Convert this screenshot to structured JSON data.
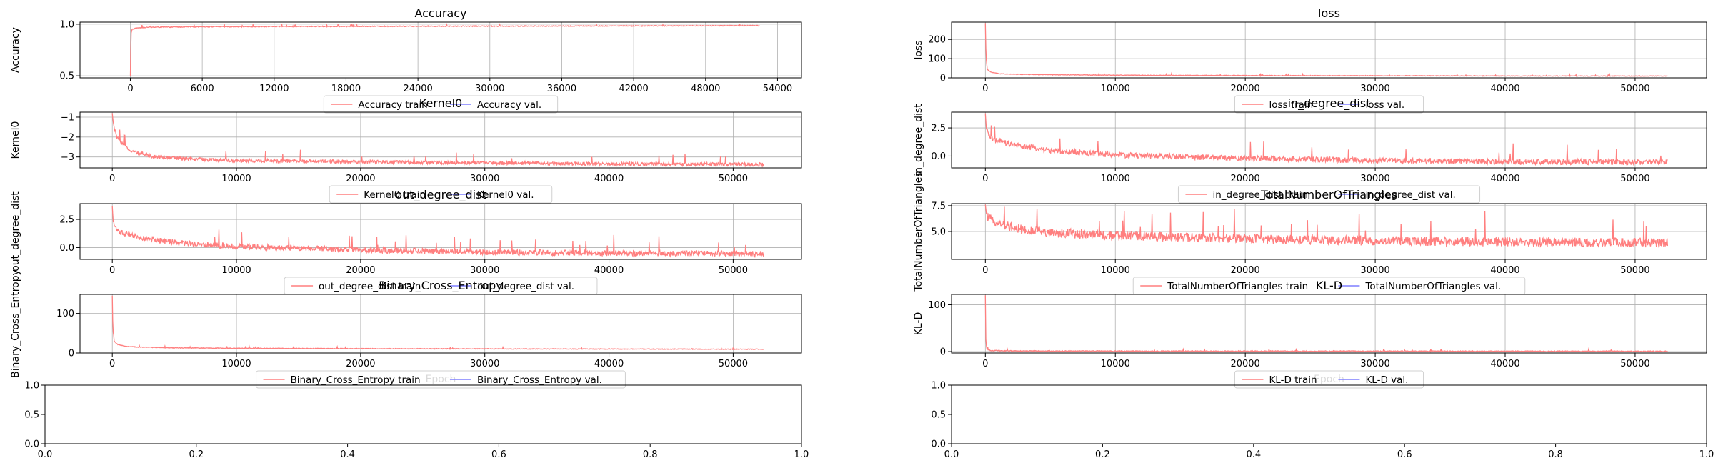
{
  "figure": {
    "type": "training-curves-grid"
  },
  "colors": {
    "train": "#ff7f7f",
    "val": "#7f7fff",
    "grid": "#b0b0b0",
    "axis": "#000000"
  },
  "chart_data": [
    {
      "type": "line",
      "title": "Accuracy",
      "xlabel": "",
      "ylabel": "Accuracy",
      "xlim": [
        -4200,
        56000
      ],
      "ylim": [
        0.48,
        1.02
      ],
      "xticks": [
        0,
        6000,
        12000,
        18000,
        24000,
        30000,
        36000,
        42000,
        48000,
        54000
      ],
      "xtick_labels": [
        "0",
        "6000",
        "12000",
        "18000",
        "24000",
        "30000",
        "36000",
        "42000",
        "48000",
        "54000"
      ],
      "yticks": [
        0.5,
        1.0
      ],
      "ytick_labels": [
        "0.5",
        "1.0"
      ],
      "grid": true,
      "legend": "bottom-center",
      "series": [
        {
          "name": "Accuracy train",
          "x": [
            0,
            60,
            150,
            400,
            800,
            1500,
            3000,
            6000,
            12000,
            24000,
            36000,
            48000,
            52500
          ],
          "y": [
            0.5,
            0.91,
            0.95,
            0.96,
            0.965,
            0.97,
            0.972,
            0.975,
            0.978,
            0.98,
            0.982,
            0.985,
            0.986
          ],
          "noise": 0.004
        },
        {
          "name": "Accuracy val.",
          "x": [],
          "y": []
        }
      ]
    },
    {
      "type": "line",
      "title": "loss",
      "xlabel": "",
      "ylabel": "loss",
      "xlim": [
        -2600,
        55500
      ],
      "ylim": [
        0,
        290
      ],
      "xticks": [
        0,
        10000,
        20000,
        30000,
        40000,
        50000
      ],
      "xtick_labels": [
        "0",
        "10000",
        "20000",
        "30000",
        "40000",
        "50000"
      ],
      "yticks": [
        0,
        100,
        200
      ],
      "ytick_labels": [
        "0",
        "100",
        "200"
      ],
      "grid": true,
      "legend": "bottom-center",
      "series": [
        {
          "name": "loss train",
          "x": [
            0,
            50,
            150,
            400,
            1000,
            2000,
            5000,
            10000,
            20000,
            30000,
            40000,
            52500
          ],
          "y": [
            285,
            110,
            45,
            30,
            22,
            19,
            16,
            14,
            12,
            11,
            10,
            9.5
          ],
          "noise": 1.5
        },
        {
          "name": "loss val.",
          "x": [],
          "y": []
        }
      ]
    },
    {
      "type": "line",
      "title": "Kernel0",
      "xlabel": "",
      "ylabel": "Kernel0",
      "xlim": [
        -2600,
        55500
      ],
      "ylim": [
        -3.55,
        -0.75
      ],
      "xticks": [
        0,
        10000,
        20000,
        30000,
        40000,
        50000
      ],
      "xtick_labels": [
        "0",
        "10000",
        "20000",
        "30000",
        "40000",
        "50000"
      ],
      "yticks": [
        -1,
        -2,
        -3
      ],
      "ytick_labels": [
        "−1",
        "−2",
        "−3"
      ],
      "grid": true,
      "legend": "bottom-center",
      "series": [
        {
          "name": "Kernel0 train",
          "x": [
            0,
            100,
            300,
            700,
            1500,
            3000,
            6000,
            10000,
            20000,
            30000,
            40000,
            52500
          ],
          "y": [
            -0.8,
            -1.4,
            -1.9,
            -2.3,
            -2.7,
            -2.95,
            -3.1,
            -3.18,
            -3.25,
            -3.3,
            -3.35,
            -3.38
          ],
          "noise": 0.09
        },
        {
          "name": "Kernel0 val.",
          "x": [],
          "y": []
        }
      ]
    },
    {
      "type": "line",
      "title": "in_degree_dist",
      "xlabel": "",
      "ylabel": "in_degree_dist",
      "xlim": [
        -2600,
        55500
      ],
      "ylim": [
        -1.05,
        3.9
      ],
      "xticks": [
        0,
        10000,
        20000,
        30000,
        40000,
        50000
      ],
      "xtick_labels": [
        "0",
        "10000",
        "20000",
        "30000",
        "40000",
        "50000"
      ],
      "yticks": [
        0.0,
        2.5
      ],
      "ytick_labels": [
        "0.0",
        "2.5"
      ],
      "grid": true,
      "legend": "bottom-center",
      "series": [
        {
          "name": "in_degree_dist train",
          "x": [
            0,
            80,
            300,
            800,
            2000,
            5000,
            10000,
            20000,
            30000,
            40000,
            52500
          ],
          "y": [
            3.8,
            2.3,
            1.8,
            1.4,
            1.0,
            0.5,
            0.1,
            -0.2,
            -0.4,
            -0.5,
            -0.55
          ],
          "noise": 0.25
        },
        {
          "name": "in_degree_dist val.",
          "x": [],
          "y": []
        }
      ]
    },
    {
      "type": "line",
      "title": "out_degree_dist",
      "xlabel": "",
      "ylabel": "out_degree_dist",
      "xlim": [
        -2600,
        55500
      ],
      "ylim": [
        -1.05,
        3.9
      ],
      "xticks": [
        0,
        10000,
        20000,
        30000,
        40000,
        50000
      ],
      "xtick_labels": [
        "0",
        "10000",
        "20000",
        "30000",
        "40000",
        "50000"
      ],
      "yticks": [
        0.0,
        2.5
      ],
      "ytick_labels": [
        "0.0",
        "2.5"
      ],
      "grid": true,
      "legend": "bottom-center",
      "series": [
        {
          "name": "out_degree_dist train",
          "x": [
            0,
            80,
            300,
            800,
            2000,
            5000,
            10000,
            20000,
            30000,
            40000,
            52500
          ],
          "y": [
            3.7,
            2.2,
            1.7,
            1.3,
            0.9,
            0.45,
            0.1,
            -0.2,
            -0.4,
            -0.5,
            -0.55
          ],
          "noise": 0.25
        },
        {
          "name": "out_degree_dist val.",
          "x": [],
          "y": []
        }
      ]
    },
    {
      "type": "line",
      "title": "TotalNumberOfTriangles",
      "xlabel": "",
      "ylabel": "TotalNumberOfTriangles",
      "xlim": [
        -2600,
        55500
      ],
      "ylim": [
        2.3,
        7.7
      ],
      "xticks": [
        0,
        10000,
        20000,
        30000,
        40000,
        50000
      ],
      "xtick_labels": [
        "0",
        "10000",
        "20000",
        "30000",
        "40000",
        "50000"
      ],
      "yticks": [
        5.0,
        7.5
      ],
      "ytick_labels": [
        "5.0",
        "7.5"
      ],
      "grid": true,
      "legend": "bottom-center",
      "series": [
        {
          "name": "TotalNumberOfTriangles train",
          "x": [
            0,
            100,
            400,
            1000,
            2500,
            5000,
            10000,
            20000,
            30000,
            40000,
            52500
          ],
          "y": [
            7.6,
            6.5,
            6.2,
            5.8,
            5.3,
            4.9,
            4.6,
            4.3,
            4.1,
            4.0,
            3.9
          ],
          "noise": 0.45
        },
        {
          "name": "TotalNumberOfTriangles val.",
          "x": [],
          "y": []
        }
      ]
    },
    {
      "type": "line",
      "title": "Binary_Cross_Entropy",
      "xlabel": "Epoch",
      "ylabel": "Binary_Cross_Entropy",
      "xlim": [
        -2600,
        55500
      ],
      "ylim": [
        0,
        148
      ],
      "xticks": [
        0,
        10000,
        20000,
        30000,
        40000,
        50000
      ],
      "xtick_labels": [
        "0",
        "10000",
        "20000",
        "30000",
        "40000",
        "50000"
      ],
      "yticks": [
        0,
        100
      ],
      "ytick_labels": [
        "0",
        "100"
      ],
      "grid": true,
      "legend": "bottom-center",
      "series": [
        {
          "name": "Binary_Cross_Entropy train",
          "x": [
            0,
            50,
            150,
            400,
            1000,
            2000,
            5000,
            10000,
            20000,
            30000,
            40000,
            52500
          ],
          "y": [
            145,
            60,
            30,
            22,
            17,
            15,
            13,
            12,
            11,
            10.5,
            10,
            9.5
          ],
          "noise": 0.8
        },
        {
          "name": "Binary_Cross_Entropy val.",
          "x": [],
          "y": []
        }
      ]
    },
    {
      "type": "line",
      "title": "KL-D",
      "xlabel": "Epoch",
      "ylabel": "KL-D",
      "xlim": [
        -2600,
        55500
      ],
      "ylim": [
        -3,
        122
      ],
      "xticks": [
        0,
        10000,
        20000,
        30000,
        40000,
        50000
      ],
      "xtick_labels": [
        "0",
        "10000",
        "20000",
        "30000",
        "40000",
        "50000"
      ],
      "yticks": [
        0,
        100
      ],
      "ytick_labels": [
        "0",
        "100"
      ],
      "grid": true,
      "legend": "bottom-center",
      "series": [
        {
          "name": "KL-D train",
          "x": [
            0,
            40,
            120,
            400,
            1500,
            5000,
            10000,
            30000,
            52500
          ],
          "y": [
            120,
            20,
            5,
            2.5,
            1.5,
            1.2,
            1.0,
            0.8,
            0.6
          ],
          "noise": 0.9
        },
        {
          "name": "KL-D val.",
          "x": [],
          "y": []
        }
      ]
    },
    {
      "type": "line",
      "title": "",
      "xlabel": "",
      "ylabel": "",
      "xlim": [
        0,
        1
      ],
      "ylim": [
        0,
        1
      ],
      "xticks": [
        0,
        0.2,
        0.4,
        0.6,
        0.8,
        1.0
      ],
      "xtick_labels": [
        "0.0",
        "0.2",
        "0.4",
        "0.6",
        "0.8",
        "1.0"
      ],
      "yticks": [
        0,
        0.5,
        1.0
      ],
      "ytick_labels": [
        "0.0",
        "0.5",
        "1.0"
      ],
      "grid": false,
      "legend": "none",
      "series": []
    },
    {
      "type": "line",
      "title": "",
      "xlabel": "",
      "ylabel": "",
      "xlim": [
        0,
        1
      ],
      "ylim": [
        0,
        1
      ],
      "xticks": [
        0,
        0.2,
        0.4,
        0.6,
        0.8,
        1.0
      ],
      "xtick_labels": [
        "0.0",
        "0.2",
        "0.4",
        "0.6",
        "0.8",
        "1.0"
      ],
      "yticks": [
        0,
        0.5,
        1.0
      ],
      "ytick_labels": [
        "0.0",
        "0.5",
        "1.0"
      ],
      "grid": false,
      "legend": "none",
      "series": []
    }
  ]
}
